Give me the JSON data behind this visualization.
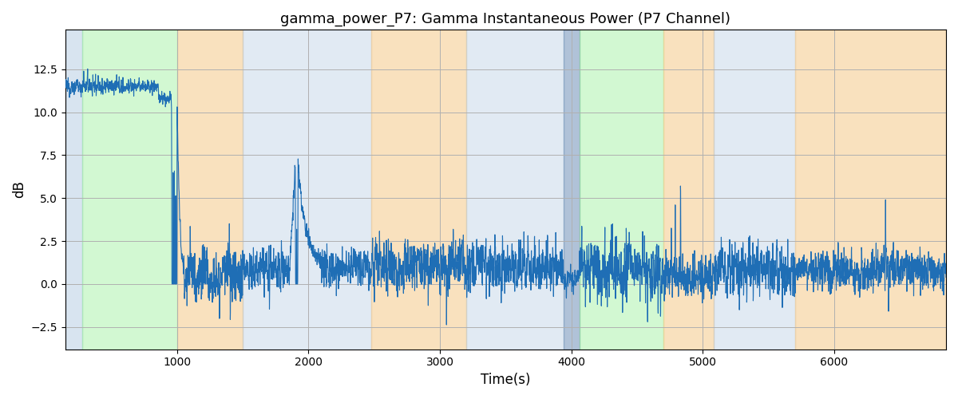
{
  "title": "gamma_power_P7: Gamma Instantaneous Power (P7 Channel)",
  "xlabel": "Time(s)",
  "ylabel": "dB",
  "xlim": [
    150,
    6850
  ],
  "ylim": [
    -3.8,
    14.8
  ],
  "line_color": "#1f6eb5",
  "line_width": 0.8,
  "background_color": "#ffffff",
  "grid_color": "#b0b0b0",
  "bands": [
    {
      "xmin": 150,
      "xmax": 280,
      "color": "#aac4de",
      "alpha": 0.45
    },
    {
      "xmin": 280,
      "xmax": 1000,
      "color": "#90ee90",
      "alpha": 0.4
    },
    {
      "xmin": 1000,
      "xmax": 1500,
      "color": "#f5c98a",
      "alpha": 0.55
    },
    {
      "xmin": 1500,
      "xmax": 2480,
      "color": "#aac4de",
      "alpha": 0.35
    },
    {
      "xmin": 2480,
      "xmax": 3200,
      "color": "#f5c98a",
      "alpha": 0.55
    },
    {
      "xmin": 3200,
      "xmax": 3940,
      "color": "#aac4de",
      "alpha": 0.35
    },
    {
      "xmin": 3940,
      "xmax": 4060,
      "color": "#7090b8",
      "alpha": 0.55
    },
    {
      "xmin": 4060,
      "xmax": 4700,
      "color": "#90ee90",
      "alpha": 0.4
    },
    {
      "xmin": 4700,
      "xmax": 5080,
      "color": "#f5c98a",
      "alpha": 0.55
    },
    {
      "xmin": 5080,
      "xmax": 5700,
      "color": "#aac4de",
      "alpha": 0.35
    },
    {
      "xmin": 5700,
      "xmax": 6850,
      "color": "#f5c98a",
      "alpha": 0.55
    }
  ],
  "t_start": 150,
  "t_end": 6850,
  "title_fontsize": 13
}
